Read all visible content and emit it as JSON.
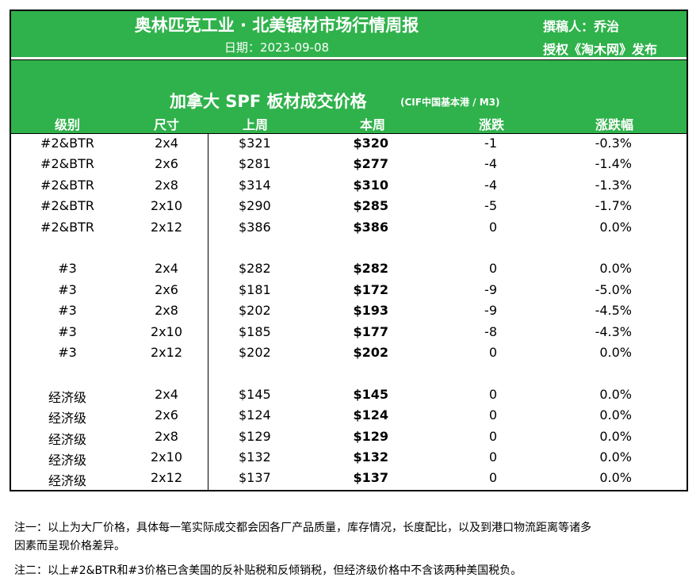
{
  "header": {
    "title": "奥林匹克工业 · 北美锯材市场行情周报",
    "date": "日期：2023-09-08",
    "author": "撰稿人：乔治",
    "license": "授权《淘木网》发布"
  },
  "table": {
    "title": "加拿大 SPF 板材成交价格",
    "subtitle": "(CIF中国基本港 / M3)",
    "columns": [
      "级别",
      "尺寸",
      "上周",
      "本周",
      "涨跌",
      "涨跌幅"
    ],
    "rows": [
      [
        "#2&BTR",
        "2x4",
        "$321",
        "$320",
        "-1",
        "-0.3%"
      ],
      [
        "#2&BTR",
        "2x6",
        "$281",
        "$277",
        "-4",
        "-1.4%"
      ],
      [
        "#2&BTR",
        "2x8",
        "$314",
        "$310",
        "-4",
        "-1.3%"
      ],
      [
        "#2&BTR",
        "2x10",
        "$290",
        "$285",
        "-5",
        "-1.7%"
      ],
      [
        "#2&BTR",
        "2x12",
        "$386",
        "$386",
        "0",
        "0.0%"
      ],
      [
        "#3",
        "2x4",
        "$282",
        "$282",
        "0",
        "0.0%"
      ],
      [
        "#3",
        "2x6",
        "$181",
        "$172",
        "-9",
        "-5.0%"
      ],
      [
        "#3",
        "2x8",
        "$202",
        "$193",
        "-9",
        "-4.5%"
      ],
      [
        "#3",
        "2x10",
        "$185",
        "$177",
        "-8",
        "-4.3%"
      ],
      [
        "#3",
        "2x12",
        "$202",
        "$202",
        "0",
        "0.0%"
      ],
      [
        "经济级",
        "2x4",
        "$145",
        "$145",
        "0",
        "0.0%"
      ],
      [
        "经济级",
        "2x6",
        "$124",
        "$124",
        "0",
        "0.0%"
      ],
      [
        "经济级",
        "2x8",
        "$129",
        "$129",
        "0",
        "0.0%"
      ],
      [
        "经济级",
        "2x10",
        "$132",
        "$132",
        "0",
        "0.0%"
      ],
      [
        "经济级",
        "2x12",
        "$137",
        "$137",
        "0",
        "0.0%"
      ]
    ]
  },
  "notes": [
    "注一：以上为大厂价格，具体每一笔实际成交都会因各厂产品质量，库存情况，长度配比，以及到港口物流距离等诸多",
    "因素而呈现价格差异。",
    "注二：以上#2&BTR和#3价格已含美国的反补贴税和反倾销税，但经济级价格中不含该两种美国税负。"
  ]
}
